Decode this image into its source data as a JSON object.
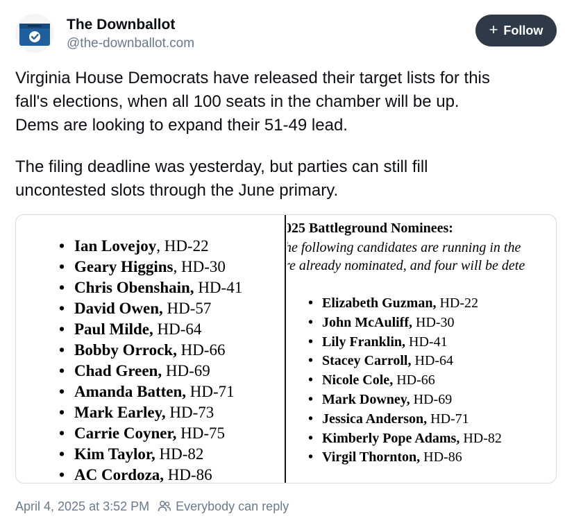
{
  "author": {
    "display_name": "The Downballot",
    "handle": "@the-downballot.com",
    "avatar_icon": "ballot-box-icon"
  },
  "follow_button": {
    "label": "Follow",
    "icon": "plus-icon"
  },
  "post": {
    "paragraph1_lines": [
      "Virginia House Democrats have released their target lists for this",
      "fall's elections, when all 100 seats in the chamber will be up.",
      "Dems are looking to expand their 51-49 lead."
    ],
    "paragraph2_lines": [
      "The filing deadline was yesterday, but parties can still fill",
      "uncontested slots through the June primary."
    ]
  },
  "image": {
    "left_list": [
      {
        "name": "Ian Lovejoy",
        "district": ", HD-22"
      },
      {
        "name": "Geary Higgins",
        "district": ", HD-30"
      },
      {
        "name": "Chris Obenshain,",
        "district": " HD-41"
      },
      {
        "name": "David Owen,",
        "district": " HD-57"
      },
      {
        "name": "Paul Milde,",
        "district": " HD-64"
      },
      {
        "name": "Bobby Orrock,",
        "district": " HD-66"
      },
      {
        "name": "Chad Green,",
        "district": " HD-69"
      },
      {
        "name": "Amanda Batten,",
        "district": " HD-71"
      },
      {
        "name": "Mark Earley,",
        "district": " HD-73"
      },
      {
        "name": "Carrie Coyner,",
        "district": " HD-75"
      },
      {
        "name": "Kim Taylor,",
        "district": " HD-82"
      },
      {
        "name": "AC Cordoza,",
        "district": " HD-86"
      }
    ],
    "right_title": "025 Battleground Nominees:",
    "right_intro_lines": [
      "he following candidates are running in the",
      "re already nominated, and four will be dete"
    ],
    "right_list": [
      {
        "name": "Elizabeth Guzman,",
        "district": " HD-22"
      },
      {
        "name": "John McAuliff,",
        "district": " HD-30"
      },
      {
        "name": "Lily Franklin,",
        "district": " HD-41"
      },
      {
        "name": "Stacey Carroll,",
        "district": " HD-64"
      },
      {
        "name": "Nicole Cole,",
        "district": " HD-66"
      },
      {
        "name": "Mark Downey,",
        "district": " HD-69"
      },
      {
        "name": "Jessica Anderson,",
        "district": " HD-71"
      },
      {
        "name": "Kimberly Pope Adams,",
        "district": " HD-82"
      },
      {
        "name": "Virgil Thornton,",
        "district": " HD-86"
      }
    ]
  },
  "footer": {
    "timestamp": "April 4, 2025 at 3:52 PM",
    "reply_icon": "people-icon",
    "reply_setting": "Everybody can reply"
  },
  "colors": {
    "follow_bg": "#2e3a47",
    "muted_text": "#6a7a8c",
    "avatar_blue": "#1f5f9e"
  }
}
